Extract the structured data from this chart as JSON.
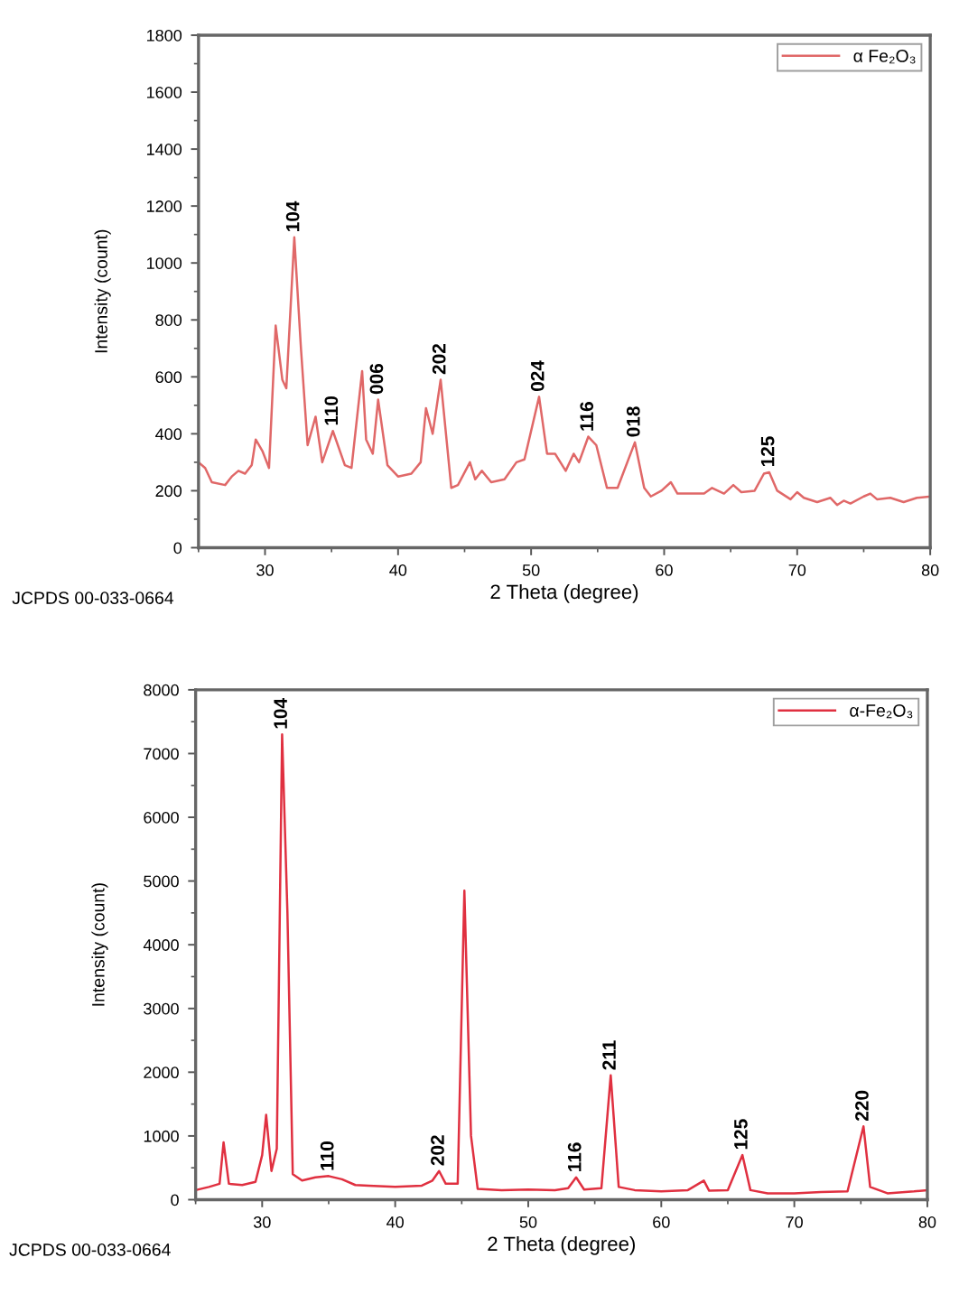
{
  "chart_data": [
    {
      "type": "line",
      "xlabel": "2 Theta (degree)",
      "ylabel": "Intensity (count)",
      "xlim": [
        25,
        80
      ],
      "ylim": [
        0,
        1800
      ],
      "xticks": [
        30,
        40,
        50,
        60,
        70,
        80
      ],
      "yticks": [
        0,
        200,
        400,
        600,
        800,
        1000,
        1200,
        1400,
        1600,
        1800
      ],
      "grid": false,
      "legend": "top right",
      "x": [
        25,
        25.5,
        26,
        27,
        27.5,
        28,
        28.5,
        29,
        29.3,
        29.8,
        30.3,
        30.8,
        31.3,
        31.6,
        32.2,
        32.7,
        33.2,
        33.8,
        34.3,
        35.1,
        36,
        36.5,
        37.3,
        37.6,
        38.1,
        38.5,
        39.2,
        40,
        41,
        41.7,
        42.1,
        42.6,
        43.2,
        44,
        44.5,
        45.4,
        45.8,
        46.3,
        47,
        48,
        48.9,
        49.5,
        50.6,
        51.2,
        51.8,
        52.6,
        53.2,
        53.6,
        54.3,
        54.9,
        55.7,
        56.5,
        57.8,
        58.5,
        59,
        59.8,
        60.5,
        61,
        62,
        63,
        63.6,
        64.5,
        65.2,
        65.8,
        66.8,
        67.5,
        67.9,
        68.5,
        69.5,
        70,
        70.5,
        71.5,
        72.5,
        73,
        73.5,
        74,
        75,
        75.5,
        76,
        77,
        78,
        79,
        80
      ],
      "series": [
        {
          "name": "α Fe₂O₃",
          "color": "#e06868",
          "values": [
            300,
            280,
            230,
            220,
            250,
            270,
            260,
            290,
            380,
            340,
            280,
            780,
            590,
            560,
            1090,
            700,
            360,
            460,
            300,
            410,
            290,
            280,
            620,
            380,
            330,
            520,
            290,
            250,
            260,
            300,
            490,
            400,
            590,
            210,
            220,
            300,
            240,
            270,
            230,
            240,
            300,
            310,
            530,
            330,
            330,
            270,
            330,
            300,
            390,
            360,
            210,
            210,
            370,
            210,
            180,
            200,
            230,
            190,
            190,
            190,
            210,
            190,
            220,
            195,
            200,
            260,
            265,
            200,
            170,
            195,
            175,
            160,
            175,
            150,
            165,
            155,
            180,
            190,
            170,
            175,
            160,
            175,
            180
          ]
        }
      ],
      "annotations": [
        {
          "text": "104",
          "x": 32.2,
          "y": 1090
        },
        {
          "text": "110",
          "x": 35.1,
          "y": 410
        },
        {
          "text": "006",
          "x": 38.5,
          "y": 520
        },
        {
          "text": "202",
          "x": 43.2,
          "y": 590
        },
        {
          "text": "024",
          "x": 50.6,
          "y": 530
        },
        {
          "text": "116",
          "x": 54.3,
          "y": 390
        },
        {
          "text": "018",
          "x": 57.8,
          "y": 370
        },
        {
          "text": "125",
          "x": 67.9,
          "y": 265
        },
        "JCPDS 00-033-0664"
      ]
    },
    {
      "type": "line",
      "xlabel": "2 Theta (degree)",
      "ylabel": "Intensity (count)",
      "xlim": [
        25,
        80
      ],
      "ylim": [
        0,
        8000
      ],
      "xticks": [
        30,
        40,
        50,
        60,
        70,
        80
      ],
      "yticks": [
        0,
        1000,
        2000,
        3000,
        4000,
        5000,
        6000,
        7000,
        8000
      ],
      "grid": false,
      "legend": "top right",
      "x": [
        25,
        26,
        26.8,
        27.1,
        27.5,
        28.5,
        29.5,
        30,
        30.3,
        30.7,
        31.1,
        31.5,
        31.9,
        32.3,
        33,
        34,
        35,
        36,
        37,
        38,
        40,
        42,
        42.8,
        43.3,
        43.8,
        44.7,
        45.2,
        45.7,
        46.2,
        48,
        50,
        52,
        53,
        53.6,
        54.2,
        55.5,
        56.2,
        56.8,
        58,
        60,
        62,
        63.2,
        63.6,
        65,
        66.1,
        66.7,
        68,
        70,
        72,
        74,
        75.2,
        75.7,
        77,
        79,
        80
      ],
      "series": [
        {
          "name": "α-Fe₂O₃",
          "color": "#e03040",
          "values": [
            150,
            200,
            250,
            900,
            250,
            230,
            280,
            700,
            1330,
            450,
            800,
            7300,
            4500,
            400,
            300,
            350,
            370,
            320,
            230,
            220,
            200,
            220,
            300,
            450,
            250,
            250,
            4850,
            1000,
            170,
            150,
            160,
            150,
            180,
            350,
            160,
            180,
            1950,
            200,
            150,
            130,
            150,
            300,
            140,
            150,
            700,
            150,
            100,
            100,
            120,
            130,
            1150,
            200,
            100,
            130,
            150
          ]
        }
      ],
      "annotations": [
        {
          "text": "104",
          "x": 31.5,
          "y": 7300
        },
        {
          "text": "110",
          "x": 35,
          "y": 370
        },
        {
          "text": "202",
          "x": 43.3,
          "y": 450
        },
        {
          "text": "116",
          "x": 53.6,
          "y": 350
        },
        {
          "text": "211",
          "x": 56.2,
          "y": 1950
        },
        {
          "text": "125",
          "x": 66.1,
          "y": 700
        },
        {
          "text": "220",
          "x": 75.2,
          "y": 1150
        },
        "JCPDS 00-033-0664"
      ]
    }
  ]
}
